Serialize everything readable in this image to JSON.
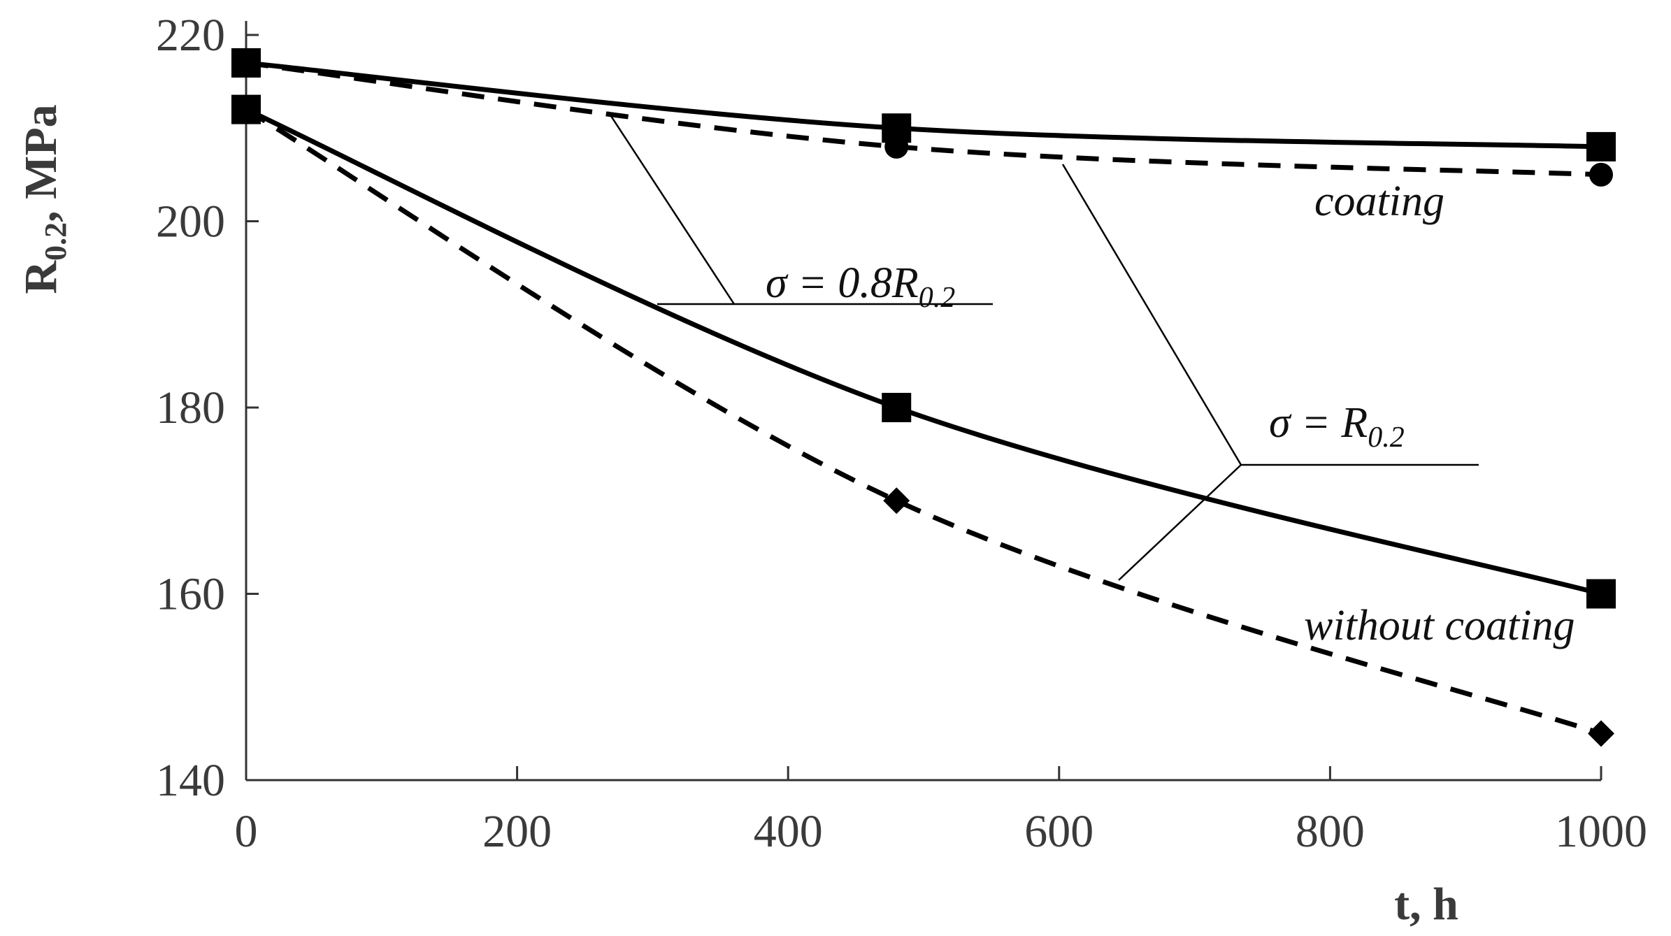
{
  "chart_data": {
    "type": "line",
    "xlabel": "t, h",
    "ylabel": {
      "main": "R",
      "sub": "0.2",
      "rest": ", MPa"
    },
    "xlim": [
      0,
      1000
    ],
    "ylim": [
      140,
      220
    ],
    "xticks": [
      0,
      200,
      400,
      600,
      800,
      1000
    ],
    "yticks": [
      140,
      160,
      180,
      200,
      220
    ],
    "grid": false,
    "series": [
      {
        "group": "coating",
        "stress": "σ = 0.8R0.2",
        "line": "solid",
        "marker": "square",
        "x": [
          0,
          480,
          1000
        ],
        "y": [
          217,
          210,
          208
        ]
      },
      {
        "group": "coating",
        "stress": "σ = R0.2",
        "line": "dashed",
        "marker": "circle",
        "x": [
          0,
          480,
          1000
        ],
        "y": [
          217,
          208,
          205
        ]
      },
      {
        "group": "without coating",
        "stress": "σ = 0.8R0.2",
        "line": "solid",
        "marker": "square",
        "x": [
          0,
          480,
          1000
        ],
        "y": [
          212,
          180,
          160
        ]
      },
      {
        "group": "without coating",
        "stress": "σ = R0.2",
        "line": "dashed",
        "marker": "diamond",
        "x": [
          0,
          480,
          1000
        ],
        "y": [
          212,
          170,
          145
        ]
      }
    ],
    "annotations": {
      "coating": "coating",
      "without_coating": "without coating",
      "sigma_08": {
        "prefix": "σ = 0.8R",
        "sub": "0.2"
      },
      "sigma_1": {
        "prefix": "σ = R",
        "sub": "0.2"
      }
    },
    "colors": {
      "line": "#000000",
      "axis": "#333333",
      "text": "#3a3a3a"
    }
  }
}
